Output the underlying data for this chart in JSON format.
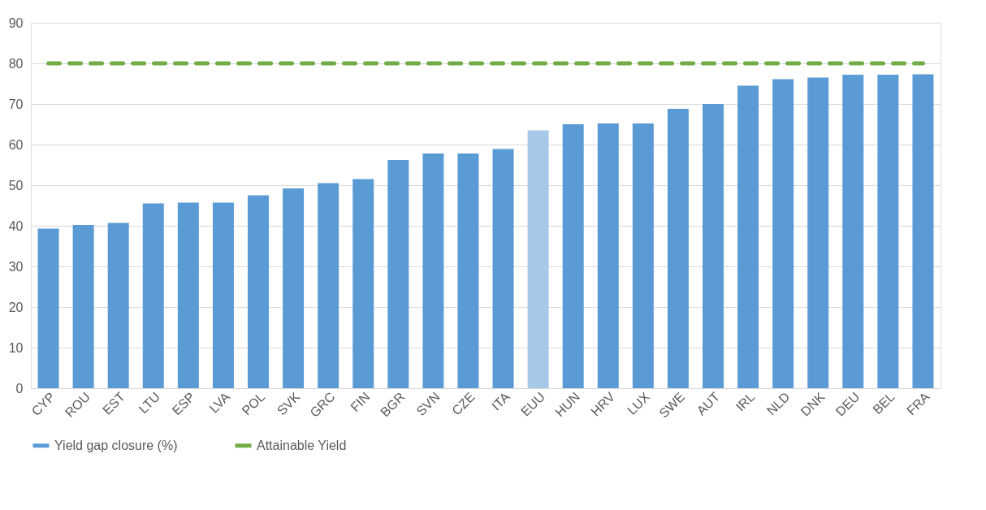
{
  "chart_data": {
    "type": "bar",
    "categories": [
      "CYP",
      "ROU",
      "EST",
      "LTU",
      "ESP",
      "LVA",
      "POL",
      "SVK",
      "GRC",
      "FIN",
      "BGR",
      "SVN",
      "CZE",
      "ITA",
      "EUU",
      "HUN",
      "HRV",
      "LUX",
      "SWE",
      "AUT",
      "IRL",
      "NLD",
      "DNK",
      "DEU",
      "BEL",
      "FRA"
    ],
    "series": [
      {
        "name": "Yield gap closure (%)",
        "color": "#5b9bd5",
        "colors": [
          "#5b9bd5",
          "#5b9bd5",
          "#5b9bd5",
          "#5b9bd5",
          "#5b9bd5",
          "#5b9bd5",
          "#5b9bd5",
          "#5b9bd5",
          "#5b9bd5",
          "#5b9bd5",
          "#5b9bd5",
          "#5b9bd5",
          "#5b9bd5",
          "#5b9bd5",
          "#a8c8ea",
          "#5b9bd5",
          "#5b9bd5",
          "#5b9bd5",
          "#5b9bd5",
          "#5b9bd5",
          "#5b9bd5",
          "#5b9bd5",
          "#5b9bd5",
          "#5b9bd5",
          "#5b9bd5",
          "#5b9bd5"
        ],
        "values": [
          39.3,
          40.2,
          40.7,
          45.5,
          45.7,
          45.7,
          47.5,
          49.2,
          50.5,
          51.5,
          56.2,
          57.8,
          57.8,
          58.9,
          63.5,
          65.0,
          65.2,
          65.2,
          68.8,
          70.0,
          74.5,
          76.1,
          76.5,
          77.2,
          77.2,
          77.3
        ]
      },
      {
        "name": "Attainable Yield",
        "type": "line",
        "line_style": "dashed",
        "color": "#70ad47",
        "values": [
          80,
          80,
          80,
          80,
          80,
          80,
          80,
          80,
          80,
          80,
          80,
          80,
          80,
          80,
          80,
          80,
          80,
          80,
          80,
          80,
          80,
          80,
          80,
          80,
          80,
          80
        ]
      }
    ],
    "ylim": [
      0,
      90
    ],
    "yticks": [
      0,
      10,
      20,
      30,
      40,
      50,
      60,
      70,
      80,
      90
    ],
    "grid": "y",
    "legend": "bottom"
  }
}
